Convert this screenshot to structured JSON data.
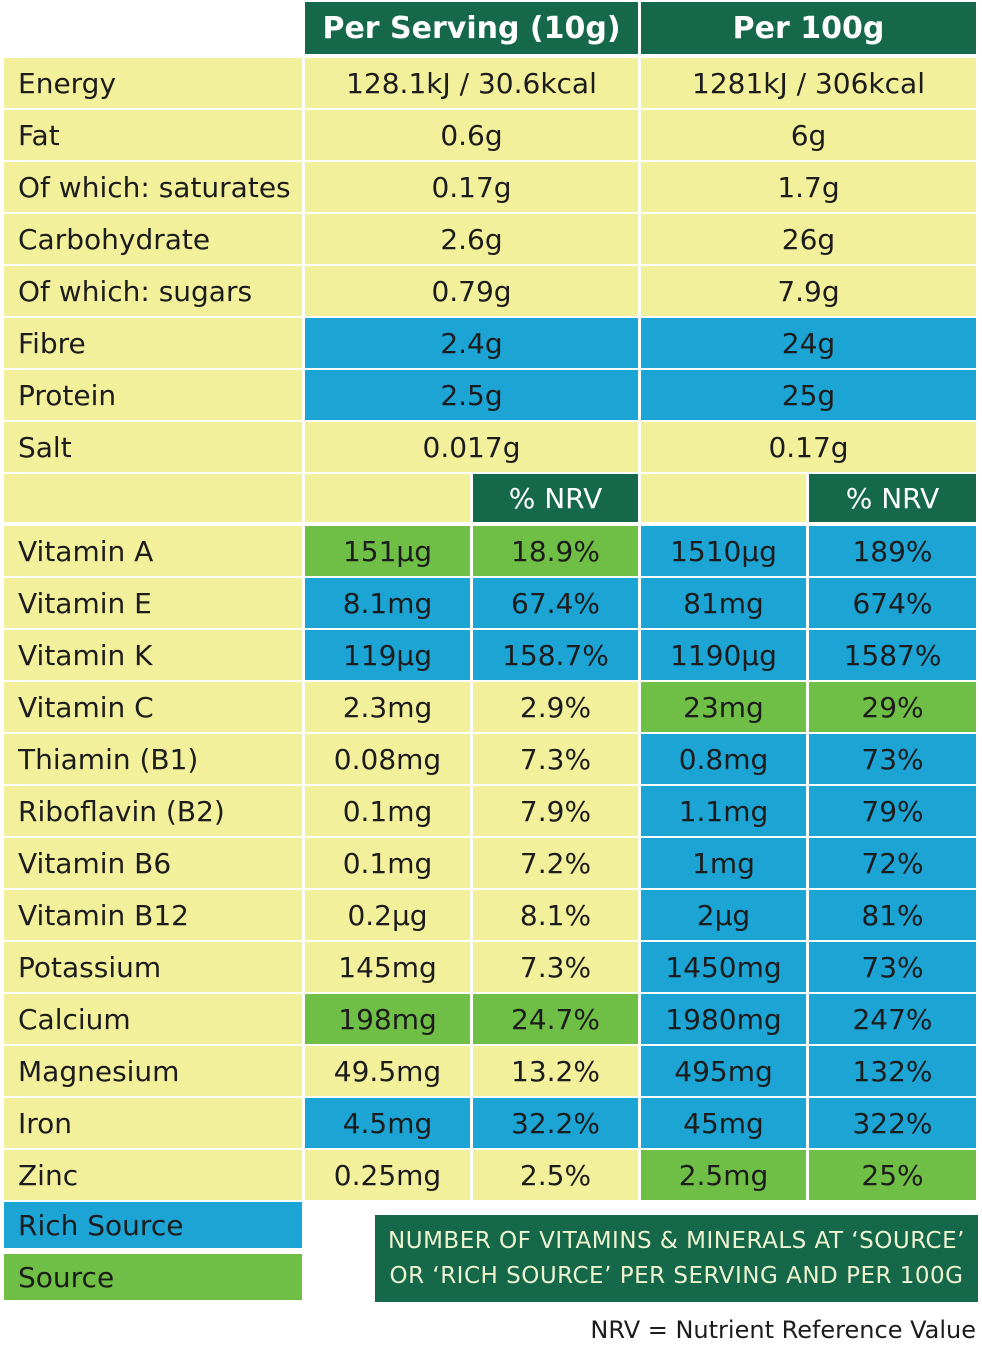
{
  "header": {
    "per_serving": "Per Serving (10g)",
    "per_100g": "Per 100g",
    "color": "#15684a"
  },
  "base_color": "#f3f09b",
  "macros": [
    {
      "label": "Energy",
      "per_serving": "128.1kJ / 30.6kcal",
      "per_100g": "1281kJ / 306kcal",
      "fill_serving": "#f3f09b",
      "fill_100g": "#f3f09b"
    },
    {
      "label": "Fat",
      "per_serving": "0.6g",
      "per_100g": "6g",
      "fill_serving": "#f3f09b",
      "fill_100g": "#f3f09b"
    },
    {
      "label": "Of which: saturates",
      "per_serving": "0.17g",
      "per_100g": "1.7g",
      "fill_serving": "#f3f09b",
      "fill_100g": "#f3f09b"
    },
    {
      "label": "Carbohydrate",
      "per_serving": "2.6g",
      "per_100g": "26g",
      "fill_serving": "#f3f09b",
      "fill_100g": "#f3f09b"
    },
    {
      "label": "Of which: sugars",
      "per_serving": "0.79g",
      "per_100g": "7.9g",
      "fill_serving": "#f3f09b",
      "fill_100g": "#f3f09b"
    },
    {
      "label": "Fibre",
      "per_serving": "2.4g",
      "per_100g": "24g",
      "fill_serving": "#1ba4d4",
      "fill_100g": "#1ba4d4"
    },
    {
      "label": "Protein",
      "per_serving": "2.5g",
      "per_100g": "25g",
      "fill_serving": "#1ba4d4",
      "fill_100g": "#1ba4d4"
    },
    {
      "label": "Salt",
      "per_serving": "0.017g",
      "per_100g": "0.17g",
      "fill_serving": "#f3f09b",
      "fill_100g": "#f3f09b"
    }
  ],
  "nrv_header": [
    "% NRV",
    "% NRV"
  ],
  "micros": [
    {
      "label": "Vitamin A",
      "serving": "151µg",
      "serving_nrv": "18.9%",
      "per_100g": "1510µg",
      "per_100g_nrv": "189%",
      "fill_serving": "#6fbe45",
      "fill_100g": "#1ba4d4"
    },
    {
      "label": "Vitamin E",
      "serving": "8.1mg",
      "serving_nrv": "67.4%",
      "per_100g": "81mg",
      "per_100g_nrv": "674%",
      "fill_serving": "#1ba4d4",
      "fill_100g": "#1ba4d4"
    },
    {
      "label": "Vitamin K",
      "serving": "119µg",
      "serving_nrv": "158.7%",
      "per_100g": "1190µg",
      "per_100g_nrv": "1587%",
      "fill_serving": "#1ba4d4",
      "fill_100g": "#1ba4d4"
    },
    {
      "label": "Vitamin C",
      "serving": "2.3mg",
      "serving_nrv": "2.9%",
      "per_100g": "23mg",
      "per_100g_nrv": "29%",
      "fill_serving": "#f3f09b",
      "fill_100g": "#6fbe45"
    },
    {
      "label": "Thiamin (B1)",
      "serving": "0.08mg",
      "serving_nrv": "7.3%",
      "per_100g": "0.8mg",
      "per_100g_nrv": "73%",
      "fill_serving": "#f3f09b",
      "fill_100g": "#1ba4d4"
    },
    {
      "label": "Riboflavin (B2)",
      "serving": "0.1mg",
      "serving_nrv": "7.9%",
      "per_100g": "1.1mg",
      "per_100g_nrv": "79%",
      "fill_serving": "#f3f09b",
      "fill_100g": "#1ba4d4"
    },
    {
      "label": "Vitamin B6",
      "serving": "0.1mg",
      "serving_nrv": "7.2%",
      "per_100g": "1mg",
      "per_100g_nrv": "72%",
      "fill_serving": "#f3f09b",
      "fill_100g": "#1ba4d4"
    },
    {
      "label": "Vitamin B12",
      "serving": "0.2µg",
      "serving_nrv": "8.1%",
      "per_100g": "2µg",
      "per_100g_nrv": "81%",
      "fill_serving": "#f3f09b",
      "fill_100g": "#1ba4d4"
    },
    {
      "label": "Potassium",
      "serving": "145mg",
      "serving_nrv": "7.3%",
      "per_100g": "1450mg",
      "per_100g_nrv": "73%",
      "fill_serving": "#f3f09b",
      "fill_100g": "#1ba4d4"
    },
    {
      "label": "Calcium",
      "serving": "198mg",
      "serving_nrv": "24.7%",
      "per_100g": "1980mg",
      "per_100g_nrv": "247%",
      "fill_serving": "#6fbe45",
      "fill_100g": "#1ba4d4"
    },
    {
      "label": "Magnesium",
      "serving": "49.5mg",
      "serving_nrv": "13.2%",
      "per_100g": "495mg",
      "per_100g_nrv": "132%",
      "fill_serving": "#f3f09b",
      "fill_100g": "#1ba4d4"
    },
    {
      "label": "Iron",
      "serving": "4.5mg",
      "serving_nrv": "32.2%",
      "per_100g": "45mg",
      "per_100g_nrv": "322%",
      "fill_serving": "#1ba4d4",
      "fill_100g": "#1ba4d4"
    },
    {
      "label": "Zinc",
      "serving": "0.25mg",
      "serving_nrv": "2.5%",
      "per_100g": "2.5mg",
      "per_100g_nrv": "25%",
      "fill_serving": "#f3f09b",
      "fill_100g": "#6fbe45"
    }
  ],
  "legend": [
    {
      "label": "Rich Source",
      "color": "#1ba4d4"
    },
    {
      "label": "Source",
      "color": "#6fbe45"
    }
  ],
  "note": [
    "NUMBER OF VITAMINS & MINERALS AT ‘SOURCE’",
    "OR ‘RICH SOURCE’ PER SERVING AND PER 100G"
  ],
  "footnote": "NRV = Nutrient Reference Value"
}
